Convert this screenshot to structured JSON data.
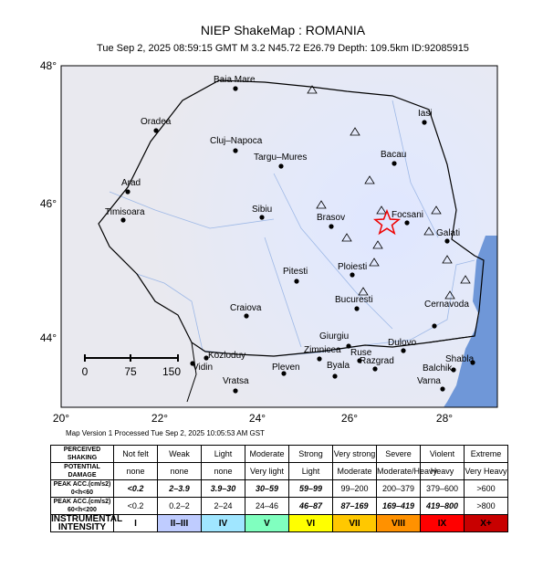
{
  "header": {
    "title": "NIEP ShakeMap : ROMANIA",
    "subtitle": "Tue Sep  2, 2025 08:59:15 GMT   M 3.2   N45.72 E26.79   Depth: 109.5km   ID:92085915"
  },
  "map": {
    "lat_labels": [
      "48°",
      "46°",
      "44°"
    ],
    "lon_labels": [
      "20°",
      "22°",
      "24°",
      "26°",
      "28°"
    ],
    "scale_labels": [
      "0",
      "75",
      "150"
    ],
    "cities": [
      "Baia Mare",
      "Oradea",
      "Cluj–Napoca",
      "Targu–Mures",
      "Iasi",
      "Bacau",
      "Arad",
      "Timisoara",
      "Sibiu",
      "Brasov",
      "Focsani",
      "Galati",
      "Ploiesti",
      "Pitesti",
      "Bucuresti",
      "Cernavoda",
      "Craiova",
      "Giurgiu",
      "Zimnicea",
      "Ruse",
      "Dulovo",
      "Kozloduy",
      "Vidin",
      "Pleven",
      "Byala",
      "Razgrad",
      "Shabla",
      "Balchik",
      "Varna",
      "Vratsa"
    ]
  },
  "footer": {
    "version": "Map Version 1 Processed Tue Sep  2, 2025 10:05:53 AM GST"
  },
  "table": {
    "rows": [
      [
        "PERCEIVED\nSHAKING",
        "Not felt",
        "Weak",
        "Light",
        "Moderate",
        "Strong",
        "Very strong",
        "Severe",
        "Violent",
        "Extreme"
      ],
      [
        "POTENTIAL\nDAMAGE",
        "none",
        "none",
        "none",
        "Very light",
        "Light",
        "Moderate",
        "Moderate/Heavy",
        "Heavy",
        "Very Heavy"
      ],
      [
        "PEAK ACC.(cm/s2)\n0<h<60",
        "<0.2",
        "2–3.9",
        "3.9–30",
        "30–59",
        "59–99",
        "99–200",
        "200–379",
        "379–600",
        ">600"
      ],
      [
        "PEAK ACC.(cm/s2)\n60<h<200",
        "<0.2",
        "0.2–2",
        "2–24",
        "24–46",
        "46–87",
        "87–169",
        "169–419",
        "419–800",
        ">800"
      ],
      [
        "INSTRUMENTAL\nINTENSITY",
        "I",
        "II–III",
        "IV",
        "V",
        "VI",
        "VII",
        "VIII",
        "IX",
        "X+"
      ]
    ]
  }
}
